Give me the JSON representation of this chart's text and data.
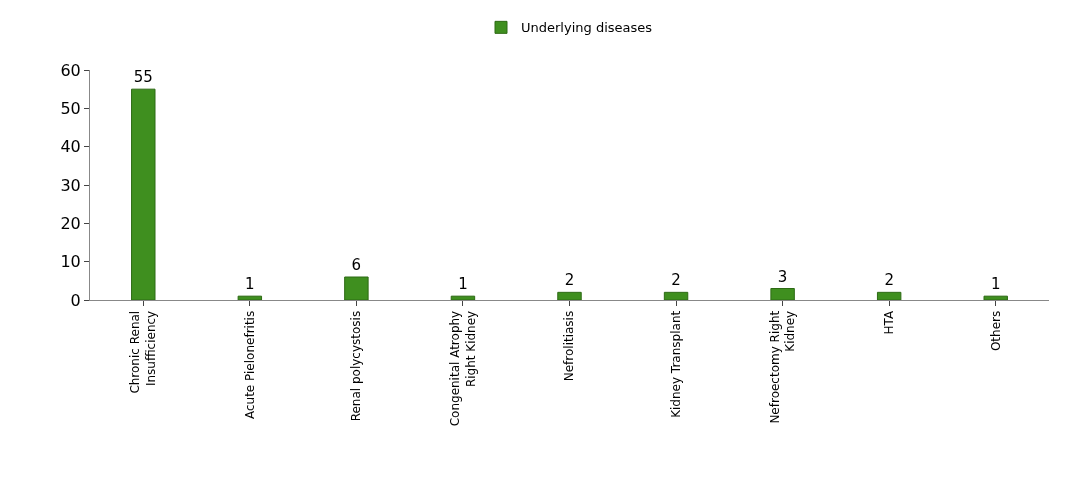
{
  "chart_data": {
    "type": "bar",
    "categories": [
      "Chronic Renal\nInsufficiency",
      "Acute Pielonefritis",
      "Renal polycystosis",
      "Congenital Atrophy\nRight Kidney",
      "Nefrolitiasis",
      "Kidney Transplant",
      "Nefroectomy Right\nKidney",
      "HTA",
      "Others"
    ],
    "series": [
      {
        "name": "Underlying diseases",
        "color": "#3f8f1f",
        "values": [
          55,
          1,
          6,
          1,
          2,
          2,
          3,
          2,
          1
        ]
      }
    ],
    "ylim": [
      0,
      60
    ],
    "yticks": [
      0,
      10,
      20,
      30,
      40,
      50,
      60
    ],
    "grid": false,
    "legend": "top",
    "data_labels": true
  }
}
